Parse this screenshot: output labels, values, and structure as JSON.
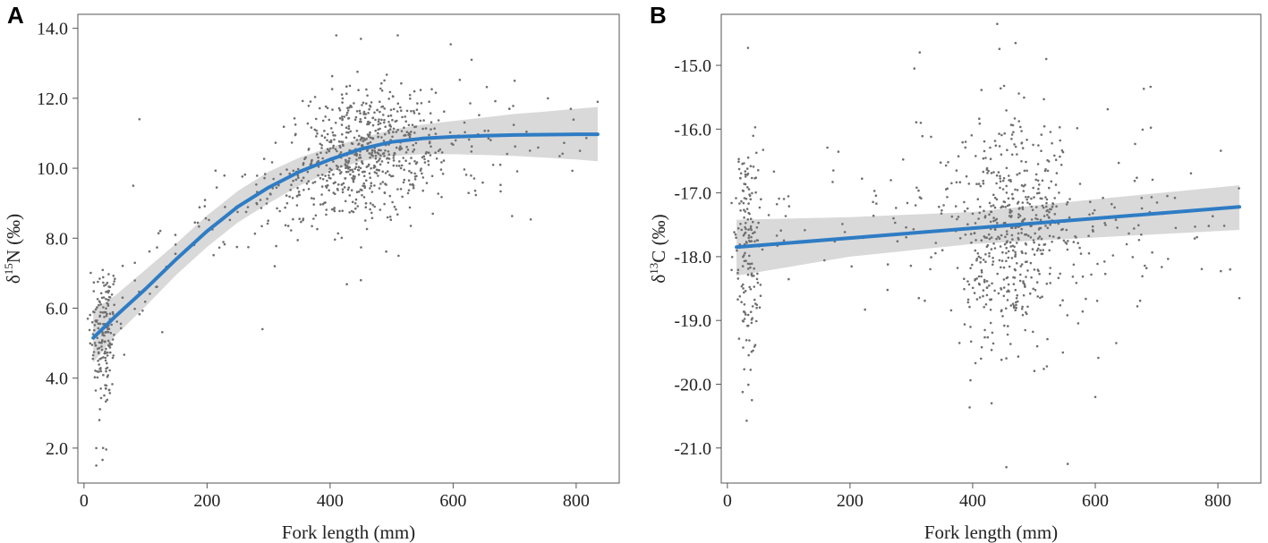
{
  "chart_data": [
    {
      "type": "scatter",
      "panel_label": "A",
      "title": "",
      "xlabel": "Fork length (mm)",
      "ylabel": {
        "delta": "δ",
        "isotope": "15",
        "element": "N",
        "unit": "(‰)"
      },
      "xlim": [
        -10,
        870
      ],
      "ylim": [
        1.0,
        14.4
      ],
      "xticks": [
        0,
        200,
        400,
        600,
        800
      ],
      "xtick_labels": [
        "0",
        "200",
        "400",
        "600",
        "800"
      ],
      "yticks": [
        2,
        4,
        6,
        8,
        10,
        12,
        14
      ],
      "ytick_labels": [
        "2.0",
        "4.0",
        "6.0",
        "8.0",
        "10.0",
        "12.0",
        "14.0"
      ],
      "grid": false,
      "colors": {
        "points": "#6f6f6f",
        "fit": "#2e7cc4",
        "band": "#d9d9d9"
      },
      "fit": {
        "type": "loess",
        "x": [
          15,
          50,
          100,
          150,
          200,
          250,
          300,
          350,
          400,
          450,
          500,
          550,
          600,
          650,
          700,
          750,
          800,
          835
        ],
        "y": [
          5.15,
          5.75,
          6.55,
          7.4,
          8.2,
          8.9,
          9.45,
          9.9,
          10.25,
          10.55,
          10.75,
          10.85,
          10.9,
          10.93,
          10.95,
          10.96,
          10.97,
          10.97
        ]
      },
      "band": {
        "x": [
          15,
          50,
          100,
          150,
          200,
          250,
          300,
          350,
          400,
          450,
          500,
          550,
          600,
          650,
          700,
          750,
          800,
          835
        ],
        "lower": [
          4.45,
          5.2,
          6.05,
          6.95,
          7.75,
          8.45,
          9.0,
          9.5,
          9.9,
          10.2,
          10.35,
          10.4,
          10.4,
          10.38,
          10.35,
          10.3,
          10.25,
          10.2
        ],
        "upper": [
          5.95,
          6.35,
          7.1,
          7.85,
          8.65,
          9.35,
          9.9,
          10.3,
          10.6,
          10.85,
          11.1,
          11.25,
          11.35,
          11.45,
          11.55,
          11.62,
          11.7,
          11.75
        ]
      },
      "clusters": [
        {
          "cx": 32,
          "cy": 5.4,
          "sx": 12,
          "sy": 1.0,
          "n": 160
        },
        {
          "cx": 35,
          "cy": 3.6,
          "sx": 8,
          "sy": 1.2,
          "n": 20
        },
        {
          "cx": 85,
          "cy": 6.3,
          "sx": 30,
          "sy": 0.7,
          "n": 20
        },
        {
          "cx": 180,
          "cy": 8.0,
          "sx": 40,
          "sy": 0.6,
          "n": 25
        },
        {
          "cx": 290,
          "cy": 9.1,
          "sx": 35,
          "sy": 0.7,
          "n": 45
        },
        {
          "cx": 370,
          "cy": 9.8,
          "sx": 30,
          "sy": 0.8,
          "n": 70
        },
        {
          "cx": 450,
          "cy": 10.35,
          "sx": 45,
          "sy": 0.95,
          "n": 480
        },
        {
          "cx": 530,
          "cy": 10.8,
          "sx": 40,
          "sy": 0.8,
          "n": 120
        },
        {
          "cx": 640,
          "cy": 10.6,
          "sx": 60,
          "sy": 1.1,
          "n": 45
        },
        {
          "cx": 760,
          "cy": 10.5,
          "sx": 50,
          "sy": 0.9,
          "n": 12
        }
      ],
      "outliers": [
        [
          20,
          1.5
        ],
        [
          20,
          2.0
        ],
        [
          25,
          2.8
        ],
        [
          90,
          11.4
        ],
        [
          80,
          9.5
        ],
        [
          290,
          5.4
        ],
        [
          310,
          7.2
        ],
        [
          450,
          6.8
        ],
        [
          410,
          13.8
        ],
        [
          450,
          13.7
        ],
        [
          510,
          13.8
        ],
        [
          630,
          13.1
        ],
        [
          700,
          12.5
        ],
        [
          835,
          11.9
        ]
      ]
    },
    {
      "type": "scatter",
      "panel_label": "B",
      "title": "",
      "xlabel": "Fork length (mm)",
      "ylabel": {
        "delta": "δ",
        "isotope": "13",
        "element": "C",
        "unit": "(‰)"
      },
      "xlim": [
        -10,
        870
      ],
      "ylim": [
        -21.55,
        -14.2
      ],
      "xticks": [
        0,
        200,
        400,
        600,
        800
      ],
      "xtick_labels": [
        "0",
        "200",
        "400",
        "600",
        "800"
      ],
      "yticks": [
        -21,
        -20,
        -19,
        -18,
        -17,
        -16,
        -15
      ],
      "ytick_labels": [
        "-21.0",
        "-20.0",
        "-19.0",
        "-18.0",
        "-17.0",
        "-16.0",
        "-15.0"
      ],
      "grid": false,
      "colors": {
        "points": "#6f6f6f",
        "fit": "#2e7cc4",
        "band": "#d9d9d9"
      },
      "fit": {
        "type": "linear",
        "x": [
          15,
          835
        ],
        "y": [
          -17.85,
          -17.22
        ]
      },
      "band": {
        "x": [
          15,
          200,
          400,
          600,
          835
        ],
        "lower": [
          -18.3,
          -18.0,
          -17.8,
          -17.7,
          -17.58
        ],
        "upper": [
          -17.42,
          -17.38,
          -17.3,
          -17.1,
          -16.88
        ]
      },
      "clusters": [
        {
          "cx": 32,
          "cy": -17.9,
          "sx": 10,
          "sy": 0.9,
          "n": 170
        },
        {
          "cx": 80,
          "cy": -17.2,
          "sx": 25,
          "sy": 0.6,
          "n": 15
        },
        {
          "cx": 230,
          "cy": -17.5,
          "sx": 50,
          "sy": 0.5,
          "n": 25
        },
        {
          "cx": 340,
          "cy": -17.3,
          "sx": 35,
          "sy": 0.8,
          "n": 40
        },
        {
          "cx": 450,
          "cy": -17.7,
          "sx": 45,
          "sy": 0.95,
          "n": 430
        },
        {
          "cx": 520,
          "cy": -17.3,
          "sx": 35,
          "sy": 0.8,
          "n": 110
        },
        {
          "cx": 600,
          "cy": -17.9,
          "sx": 40,
          "sy": 0.9,
          "n": 35
        },
        {
          "cx": 690,
          "cy": -16.8,
          "sx": 25,
          "sy": 0.8,
          "n": 30
        },
        {
          "cx": 780,
          "cy": -17.6,
          "sx": 40,
          "sy": 0.6,
          "n": 12
        }
      ],
      "outliers": [
        [
          440,
          -14.35
        ],
        [
          470,
          -14.65
        ],
        [
          520,
          -14.9
        ],
        [
          455,
          -21.3
        ],
        [
          555,
          -21.25
        ],
        [
          820,
          -18.2
        ],
        [
          835,
          -18.65
        ],
        [
          40,
          -20.25
        ],
        [
          600,
          -20.2
        ],
        [
          305,
          -15.05
        ]
      ]
    }
  ]
}
